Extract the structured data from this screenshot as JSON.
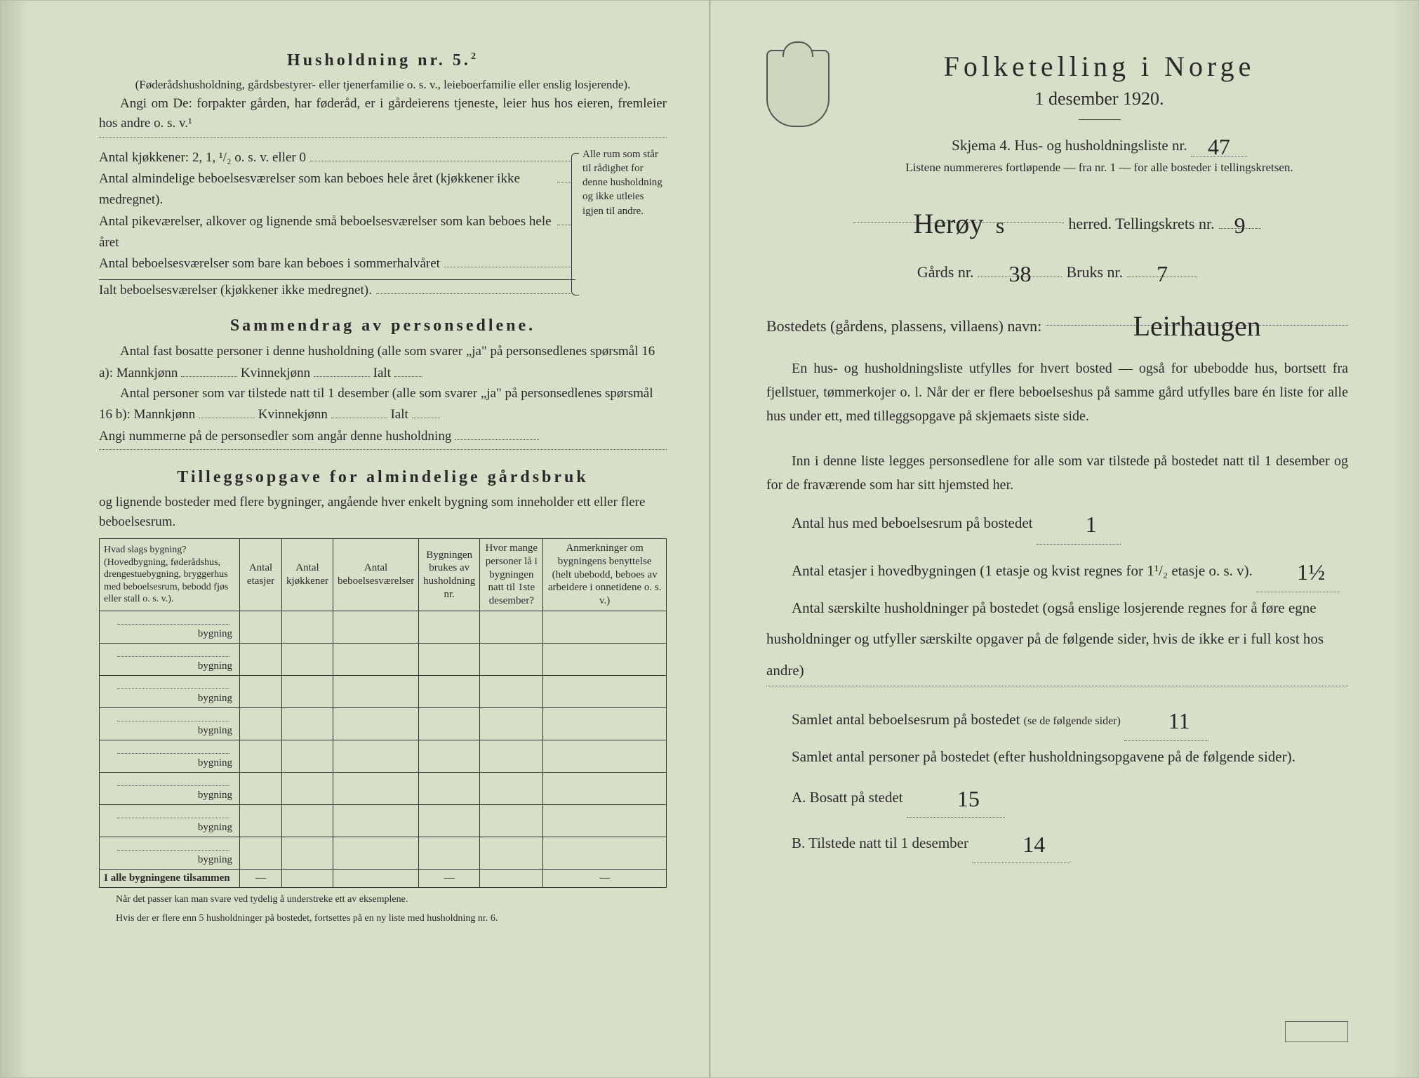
{
  "left": {
    "husholdning_title": "Husholdning nr. 5.",
    "husholdning_sup": "2",
    "husholdning_paren": "(Føderådshusholdning, gårdsbestyrer- eller tjenerfamilie o. s. v., leieboerfamilie eller enslig losjerende).",
    "angi_om": "Angi om De: forpakter gården, har føderåd, er i gårdeierens tjeneste, leier hus hos eieren, fremleier hos andre o. s. v.¹",
    "rows": {
      "kj": "Antal kjøkkener: 2, 1, ¹/₂ o. s. v. eller 0",
      "alm": "Antal almindelige beboelsesværelser som kan beboes hele året (kjøkkener ikke medregnet).",
      "pike": "Antal pikeværelser, alkover og lignende små beboelsesværelser som kan beboes hele året",
      "sommer": "Antal beboelsesværelser som bare kan beboes i sommerhalvåret",
      "ialt": "Ialt beboelsesværelser (kjøkkener ikke medregnet)."
    },
    "brace_text": "Alle rum som står til rådighet for denne husholdning og ikke utleies igjen til andre.",
    "sammendrag_title": "Sammendrag av personsedlene.",
    "s_line1a": "Antal fast bosatte personer i denne husholdning (alle som svarer „ja\" på personsedlenes spørsmål 16 a): Mannkjønn",
    "s_kv": "Kvinnekjønn",
    "s_ialt": "Ialt",
    "s_line2a": "Antal personer som var tilstede natt til 1 desember (alle som svarer „ja\" på personsedlenes spørsmål 16 b): Mannkjønn",
    "s_line3": "Angi nummerne på de personsedler som angår denne husholdning",
    "tillegg_title": "Tilleggsopgave for almindelige gårdsbruk",
    "tillegg_intro": "og lignende bosteder med flere bygninger, angående hver enkelt bygning som inneholder ett eller flere beboelsesrum.",
    "table": {
      "h1": "Hvad slags bygning?\n(Hovedbygning, føderådshus, drengestuebygning, bryggerhus med beboelsesrum, bebodd fjøs eller stall o. s. v.).",
      "h2": "Antal etasjer",
      "h3": "Antal kjøkkener",
      "h4": "Antal beboelsesværelser",
      "h5": "Bygningen brukes av husholdning nr.",
      "h6": "Hvor mange personer lå i bygningen natt til 1ste desember?",
      "h7": "Anmerkninger om bygningens benyttelse (helt ubebodd, beboes av arbeidere i onnetidene o. s. v.)",
      "row_suffix": "bygning",
      "total": "I alle bygningene tilsammen",
      "dash": "—"
    },
    "footnote1": "Når det passer kan man svare ved tydelig å understreke ett av eksemplene.",
    "footnote2": "Hvis der er flere enn 5 husholdninger på bostedet, fortsettes på en ny liste med husholdning nr. 6."
  },
  "right": {
    "main_title": "Folketelling i Norge",
    "sub_title": "1 desember 1920.",
    "skjema": "Skjema 4.  Hus- og husholdningsliste nr.",
    "skjema_val": "47",
    "list_note": "Listene nummereres fortløpende — fra nr. 1 — for alle bosteder i tellingskretsen.",
    "herred_val": "Herøy",
    "herred_suffix_hand": "s",
    "herred_label": "herred.  Tellingskrets nr.",
    "krets_val": "9",
    "gards_label": "Gårds nr.",
    "gards_val": "38",
    "bruks_label": "Bruks nr.",
    "bruks_val": "7",
    "bosted_label": "Bostedets (gårdens, plassens, villaens) navn:",
    "bosted_val": "Leirhaugen",
    "para1": "En hus- og husholdningsliste utfylles for hvert bosted — også for ubebodde hus, bortsett fra fjellstuer, tømmerkojer o. l. Når der er flere beboelseshus på samme gård utfylles bare én liste for alle hus under ett, med tilleggsopgave på skjemaets siste side.",
    "para2": "Inn i denne liste legges personsedlene for alle som var tilstede på bostedet natt til 1 desember og for de fraværende som har sitt hjemsted her.",
    "q1": "Antal hus med beboelsesrum på bostedet",
    "q1_val": "1",
    "q2a": "Antal etasjer i hovedbygningen (1 etasje og kvist regnes for 1¹/₂ etasje o. s. v).",
    "q2_val": "1½",
    "q3": "Antal særskilte husholdninger på bostedet (også enslige losjerende regnes for å føre egne husholdninger og utfyller særskilte opgaver på de følgende sider, hvis de ikke er i full kost hos andre)",
    "q4": "Samlet antal beboelsesrum på bostedet",
    "q4_small": "(se de følgende sider)",
    "q4_val": "11",
    "q5": "Samlet antal personer på bostedet (efter husholdningsopgavene på de følgende sider).",
    "qA": "A.  Bosatt på stedet",
    "qA_val": "15",
    "qB": "B.  Tilstede natt til 1 desember",
    "qB_val": "14"
  },
  "colors": {
    "bg": "#d8dfc8",
    "text": "#2a2a2a",
    "hand": "#262626"
  }
}
